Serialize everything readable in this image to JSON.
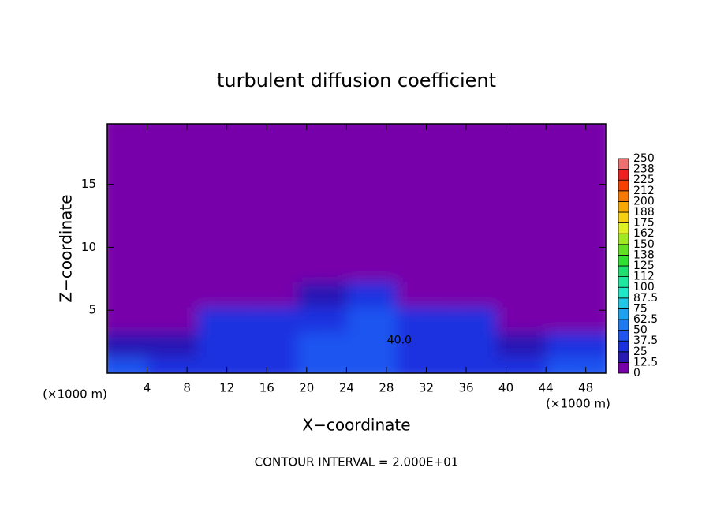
{
  "chart_data": {
    "type": "contour",
    "title": "turbulent diffusion coefficient",
    "x_label": "X−coordinate",
    "y_label": "Z−coordinate",
    "x_unit": "(×1000 m)",
    "y_unit": "(×1000 m)",
    "footnote": "CONTOUR INTERVAL = 2.000E+01",
    "xlim": [
      0,
      50
    ],
    "ylim": [
      0,
      19.8
    ],
    "xticks": [
      4,
      8,
      12,
      16,
      20,
      24,
      28,
      32,
      36,
      40,
      44,
      48
    ],
    "yticks": [
      5,
      10,
      15
    ],
    "x": [
      2.5,
      7.5,
      12.5,
      17.5,
      22.5,
      27.5,
      32.5,
      37.5,
      42.5,
      47.5
    ],
    "y": [
      1,
      3,
      5,
      7,
      9,
      11,
      13,
      15,
      17,
      19
    ],
    "z": [
      [
        45,
        30,
        28,
        35,
        38,
        45,
        35,
        32,
        35,
        40
      ],
      [
        20,
        15,
        30,
        32,
        40,
        42,
        35,
        30,
        15,
        25
      ],
      [
        8,
        10,
        30,
        30,
        35,
        40,
        32,
        25,
        10,
        10
      ],
      [
        0,
        0,
        5,
        5,
        20,
        30,
        10,
        5,
        0,
        0
      ],
      [
        0,
        0,
        0,
        0,
        0,
        5,
        0,
        0,
        0,
        0
      ],
      [
        0,
        0,
        0,
        0,
        0,
        0,
        0,
        0,
        0,
        0
      ],
      [
        0,
        0,
        0,
        0,
        0,
        0,
        0,
        0,
        0,
        0
      ],
      [
        0,
        0,
        0,
        0,
        0,
        0,
        0,
        0,
        0,
        0
      ],
      [
        0,
        0,
        0,
        0,
        0,
        0,
        0,
        0,
        0,
        0
      ],
      [
        0,
        0,
        0,
        0,
        0,
        0,
        0,
        0,
        0,
        0
      ]
    ],
    "levels": [
      0,
      12.5,
      25,
      37.5,
      50,
      62.5,
      75,
      87.5,
      100,
      112,
      125,
      138,
      150,
      162,
      175,
      188,
      200,
      212,
      225,
      238,
      250
    ],
    "colors": [
      "#7800aa",
      "#2818b4",
      "#1a30e0",
      "#1f54f0",
      "#1e7af0",
      "#1ea2f0",
      "#1ec8e4",
      "#1ee8c8",
      "#1ee8a0",
      "#1ee070",
      "#30e030",
      "#60e020",
      "#a0e820",
      "#e0f020",
      "#f8d010",
      "#f8a800",
      "#f87800",
      "#f84000",
      "#f02020",
      "#f07070"
    ],
    "annotations": [
      {
        "text": "40.0",
        "x": 29.3,
        "y": 2.6
      }
    ]
  }
}
